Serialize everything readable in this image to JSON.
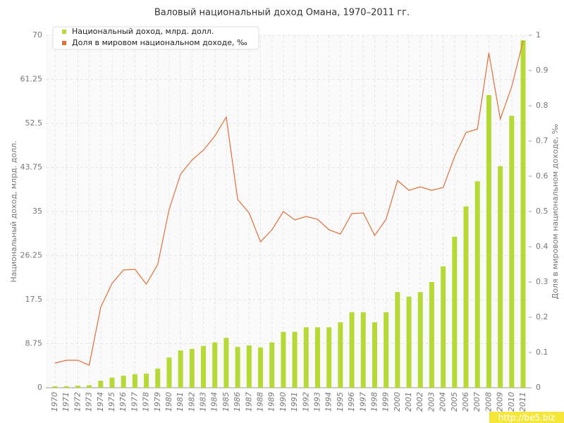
{
  "chart_data": {
    "type": "bar_line",
    "title": "Валовый национальный доход Омана, 1970–2011 гг.",
    "y_label": "Национальный доход, млрд. долл.",
    "y2_label": "Доля в мировом национальном доходе, ‰",
    "watermark": "http://be5.biz",
    "categories": [
      "1970",
      "1971",
      "1972",
      "1973",
      "1974",
      "1975",
      "1976",
      "1977",
      "1978",
      "1979",
      "1980",
      "1981",
      "1982",
      "1983",
      "1984",
      "1985",
      "1986",
      "1987",
      "1988",
      "1989",
      "1990",
      "1991",
      "1992",
      "1993",
      "1994",
      "1995",
      "1996",
      "1997",
      "1998",
      "1999",
      "2000",
      "2001",
      "2002",
      "2003",
      "2004",
      "2005",
      "2006",
      "2007",
      "2008",
      "2009",
      "2010",
      "2011"
    ],
    "series": [
      {
        "name": "Национальный доход, млрд. долл.",
        "color": "#b5d935",
        "kind": "bar",
        "values": [
          0.3,
          0.3,
          0.4,
          0.5,
          1.4,
          2.0,
          2.4,
          2.7,
          2.8,
          3.8,
          6.0,
          7.4,
          7.7,
          8.3,
          9.0,
          9.9,
          8.1,
          8.4,
          8.0,
          9.0,
          11.1,
          11.1,
          12.0,
          12.0,
          12.0,
          13.0,
          15.0,
          15.0,
          13.0,
          15.0,
          19.0,
          18.1,
          19.0,
          21.0,
          24.1,
          30.0,
          36.0,
          41.0,
          58.1,
          44.0,
          54.0,
          69.0
        ]
      },
      {
        "name": "Доля в мировом национальном доходе, ‰",
        "color": "#e0703a",
        "kind": "line",
        "axis": "y2",
        "values": [
          0.07,
          0.078,
          0.078,
          0.064,
          0.228,
          0.296,
          0.334,
          0.336,
          0.294,
          0.35,
          0.506,
          0.606,
          0.646,
          0.674,
          0.714,
          0.768,
          0.534,
          0.496,
          0.414,
          0.448,
          0.5,
          0.476,
          0.486,
          0.478,
          0.448,
          0.436,
          0.494,
          0.496,
          0.432,
          0.478,
          0.588,
          0.56,
          0.57,
          0.56,
          0.568,
          0.656,
          0.724,
          0.734,
          0.95,
          0.762,
          0.854,
          0.984
        ]
      }
    ],
    "ylim": [
      0,
      70
    ],
    "yticks": [
      0,
      8.75,
      17.5,
      26.25,
      35,
      43.75,
      52.5,
      61.25,
      70
    ],
    "y2lim": [
      0,
      1
    ],
    "y2ticks": [
      0,
      0.1,
      0.2,
      0.3,
      0.4,
      0.5,
      0.6,
      0.7,
      0.8,
      0.9,
      1
    ],
    "grid": true,
    "legend": "top-left"
  }
}
